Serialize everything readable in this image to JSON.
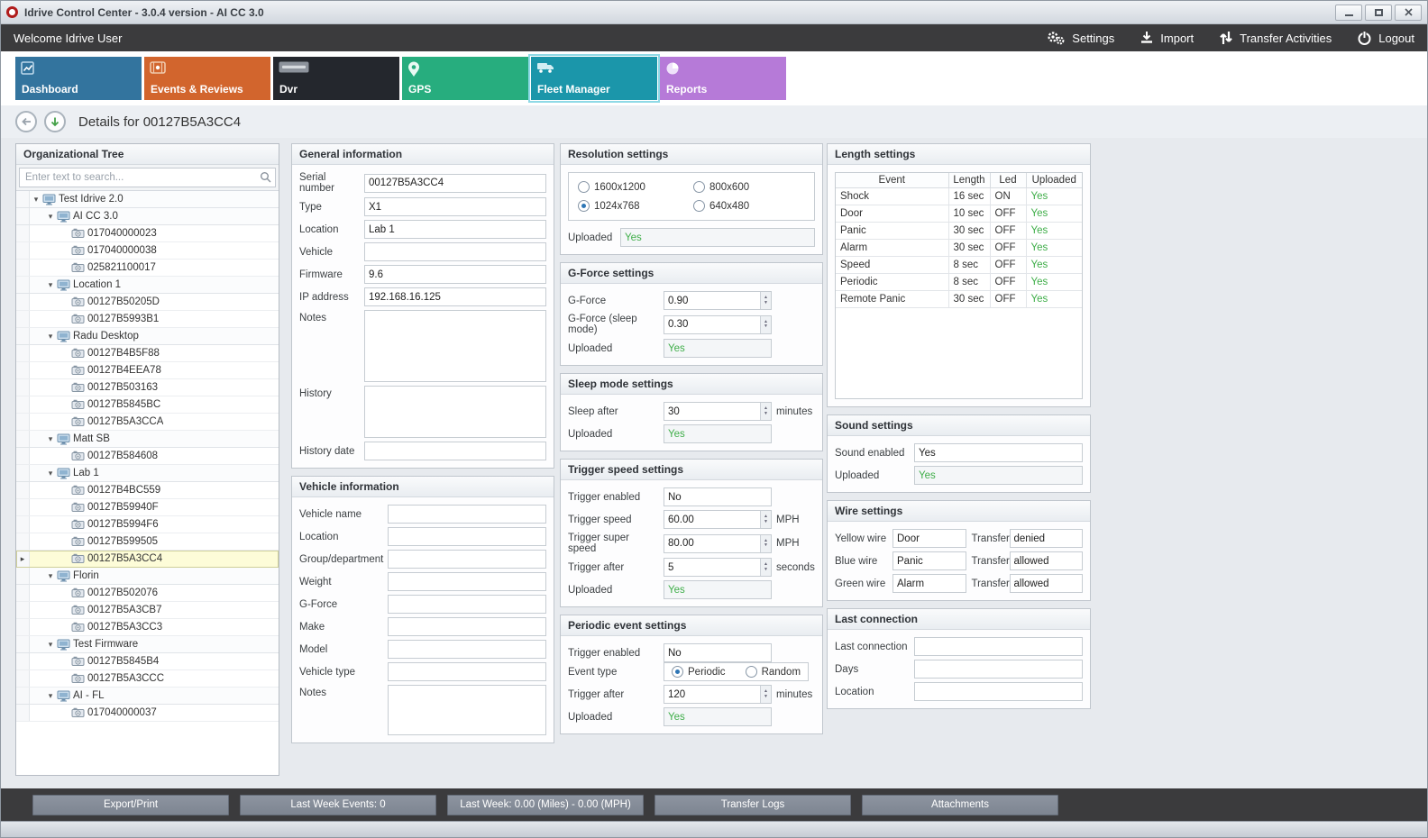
{
  "window": {
    "title": "Idrive Control Center - 3.0.4 version - AI CC 3.0"
  },
  "topbar": {
    "welcome": "Welcome Idrive User",
    "actions": [
      {
        "label": "Settings",
        "icon": "gears-icon"
      },
      {
        "label": "Import",
        "icon": "import-icon"
      },
      {
        "label": "Transfer Activities",
        "icon": "transfer-arrows-icon"
      },
      {
        "label": "Logout",
        "icon": "power-icon"
      }
    ]
  },
  "tabs": [
    {
      "label": "Dashboard",
      "icon": "chart-icon",
      "color": "#33749e",
      "selected": false
    },
    {
      "label": "Events & Reviews",
      "icon": "film-icon",
      "color": "#d2652d",
      "selected": false
    },
    {
      "label": "Dvr",
      "icon": "media-badge-icon",
      "color": "#24272d",
      "selected": false
    },
    {
      "label": "GPS",
      "icon": "map-pin-icon",
      "color": "#27ad7e",
      "selected": false
    },
    {
      "label": "Fleet Manager",
      "icon": "fleet-truck-icon",
      "color": "#1b96aa",
      "selected": true
    },
    {
      "label": "Reports",
      "icon": "pie-chart-icon",
      "color": "#b67ad8",
      "selected": false
    }
  ],
  "breadcrumb": {
    "title": "Details for 00127B5A3CC4"
  },
  "org_tree": {
    "title": "Organizational Tree",
    "search_placeholder": "Enter text to search...",
    "group_icon": "monitor-icon",
    "device_icon": "camera-icon",
    "nodes": [
      {
        "label": "Test Idrive 2.0",
        "level": 0,
        "type": "group"
      },
      {
        "label": "AI CC 3.0",
        "level": 1,
        "type": "group"
      },
      {
        "label": "017040000023",
        "level": 2,
        "type": "device"
      },
      {
        "label": "017040000038",
        "level": 2,
        "type": "device"
      },
      {
        "label": "025821100017",
        "level": 2,
        "type": "device"
      },
      {
        "label": "Location 1",
        "level": 1,
        "type": "group"
      },
      {
        "label": "00127B50205D",
        "level": 2,
        "type": "device"
      },
      {
        "label": "00127B5993B1",
        "level": 2,
        "type": "device"
      },
      {
        "label": "Radu Desktop",
        "level": 1,
        "type": "group"
      },
      {
        "label": "00127B4B5F88",
        "level": 2,
        "type": "device"
      },
      {
        "label": "00127B4EEA78",
        "level": 2,
        "type": "device"
      },
      {
        "label": "00127B503163",
        "level": 2,
        "type": "device"
      },
      {
        "label": "00127B5845BC",
        "level": 2,
        "type": "device"
      },
      {
        "label": "00127B5A3CCA",
        "level": 2,
        "type": "device"
      },
      {
        "label": "Matt SB",
        "level": 1,
        "type": "group"
      },
      {
        "label": "00127B584608",
        "level": 2,
        "type": "device"
      },
      {
        "label": "Lab 1",
        "level": 1,
        "type": "group"
      },
      {
        "label": "00127B4BC559",
        "level": 2,
        "type": "device"
      },
      {
        "label": "00127B59940F",
        "level": 2,
        "type": "device"
      },
      {
        "label": "00127B5994F6",
        "level": 2,
        "type": "device"
      },
      {
        "label": "00127B599505",
        "level": 2,
        "type": "device"
      },
      {
        "label": "00127B5A3CC4",
        "level": 2,
        "type": "device",
        "selected": true
      },
      {
        "label": "Florin",
        "level": 1,
        "type": "group"
      },
      {
        "label": "00127B502076",
        "level": 2,
        "type": "device"
      },
      {
        "label": "00127B5A3CB7",
        "level": 2,
        "type": "device"
      },
      {
        "label": "00127B5A3CC3",
        "level": 2,
        "type": "device"
      },
      {
        "label": "Test Firmware",
        "level": 1,
        "type": "group"
      },
      {
        "label": "00127B5845B4",
        "level": 2,
        "type": "device"
      },
      {
        "label": "00127B5A3CCC",
        "level": 2,
        "type": "device"
      },
      {
        "label": "AI - FL",
        "level": 1,
        "type": "group"
      },
      {
        "label": "017040000037",
        "level": 2,
        "type": "device"
      }
    ]
  },
  "general_information": {
    "title": "General information",
    "fields": [
      {
        "label": "Serial number",
        "value": "00127B5A3CC4"
      },
      {
        "label": "Type",
        "value": "X1"
      },
      {
        "label": "Location",
        "value": "Lab 1"
      },
      {
        "label": "Vehicle",
        "value": ""
      },
      {
        "label": "Firmware",
        "value": "9.6"
      },
      {
        "label": "IP address",
        "value": "192.168.16.125"
      },
      {
        "label": "Notes",
        "value": "",
        "type": "textarea"
      },
      {
        "label": "History",
        "value": "",
        "type": "textarea"
      },
      {
        "label": "History date",
        "value": ""
      }
    ]
  },
  "vehicle_information": {
    "title": "Vehicle information",
    "fields": [
      {
        "label": "Vehicle name",
        "value": ""
      },
      {
        "label": "Location",
        "value": ""
      },
      {
        "label": "Group/department",
        "value": ""
      },
      {
        "label": "Weight",
        "value": ""
      },
      {
        "label": "G-Force",
        "value": ""
      },
      {
        "label": "Make",
        "value": ""
      },
      {
        "label": "Model",
        "value": ""
      },
      {
        "label": "Vehicle type",
        "value": ""
      },
      {
        "label": "Notes",
        "value": "",
        "type": "textarea"
      }
    ]
  },
  "resolution_settings": {
    "title": "Resolution settings",
    "options": [
      {
        "label": "1600x1200",
        "selected": false
      },
      {
        "label": "800x600",
        "selected": false
      },
      {
        "label": "1024x768",
        "selected": true
      },
      {
        "label": "640x480",
        "selected": false
      }
    ],
    "uploaded": {
      "label": "Uploaded",
      "value": "Yes",
      "status": true
    }
  },
  "gforce_settings": {
    "title": "G-Force settings",
    "fields": [
      {
        "label": "G-Force",
        "value": "0.90",
        "spinner": true
      },
      {
        "label": "G-Force (sleep mode)",
        "value": "0.30",
        "spinner": true
      },
      {
        "label": "Uploaded",
        "value": "Yes",
        "status": true
      }
    ]
  },
  "sleep_mode_settings": {
    "title": "Sleep mode settings",
    "fields": [
      {
        "label": "Sleep after",
        "value": "30",
        "unit": "minutes",
        "spinner": true
      },
      {
        "label": "Uploaded",
        "value": "Yes",
        "status": true
      }
    ]
  },
  "trigger_speed_settings": {
    "title": "Trigger speed settings",
    "fields": [
      {
        "label": "Trigger enabled",
        "value": "No"
      },
      {
        "label": "Trigger speed",
        "value": "60.00",
        "unit": "MPH",
        "spinner": true
      },
      {
        "label": "Trigger super speed",
        "value": "80.00",
        "unit": "MPH",
        "spinner": true
      },
      {
        "label": "Trigger after",
        "value": "5",
        "unit": "seconds",
        "spinner": true
      },
      {
        "label": "Uploaded",
        "value": "Yes",
        "status": true
      }
    ]
  },
  "periodic_event_settings": {
    "title": "Periodic event settings",
    "fields_top": [
      {
        "label": "Trigger enabled",
        "value": "No"
      }
    ],
    "event_type": {
      "label": "Event type",
      "options": [
        {
          "label": "Periodic",
          "selected": true
        },
        {
          "label": "Random",
          "selected": false
        }
      ]
    },
    "fields_bottom": [
      {
        "label": "Trigger after",
        "value": "120",
        "unit": "minutes",
        "spinner": true
      },
      {
        "label": "Uploaded",
        "value": "Yes",
        "status": true
      }
    ]
  },
  "length_settings": {
    "title": "Length settings",
    "table": {
      "headers": [
        "Event",
        "Length",
        "Led",
        "Uploaded"
      ],
      "rows": [
        [
          "Shock",
          "16 sec",
          "ON",
          "Yes"
        ],
        [
          "Door",
          "10 sec",
          "OFF",
          "Yes"
        ],
        [
          "Panic",
          "30 sec",
          "OFF",
          "Yes"
        ],
        [
          "Alarm",
          "30 sec",
          "OFF",
          "Yes"
        ],
        [
          "Speed",
          "8 sec",
          "OFF",
          "Yes"
        ],
        [
          "Periodic",
          "8 sec",
          "OFF",
          "Yes"
        ],
        [
          "Remote Panic",
          "30 sec",
          "OFF",
          "Yes"
        ]
      ]
    }
  },
  "sound_settings": {
    "title": "Sound settings",
    "fields": [
      {
        "label": "Sound enabled",
        "value": "Yes"
      },
      {
        "label": "Uploaded",
        "value": "Yes",
        "status": true
      }
    ]
  },
  "wire_settings": {
    "title": "Wire settings",
    "rows": [
      {
        "wire_label": "Yellow wire",
        "wire_value": "Door",
        "transfer_label": "Transfer",
        "transfer_value": "denied"
      },
      {
        "wire_label": "Blue wire",
        "wire_value": "Panic",
        "transfer_label": "Transfer",
        "transfer_value": "allowed"
      },
      {
        "wire_label": "Green wire",
        "wire_value": "Alarm",
        "transfer_label": "Transfer",
        "transfer_value": "allowed"
      }
    ]
  },
  "last_connection": {
    "title": "Last connection",
    "fields": [
      {
        "label": "Last connection",
        "value": ""
      },
      {
        "label": "Days",
        "value": ""
      },
      {
        "label": "Location",
        "value": ""
      }
    ]
  },
  "bottom_bar": {
    "buttons": [
      "Export/Print",
      "Last Week Events: 0",
      "Last Week: 0.00 (Miles) - 0.00 (MPH)",
      "Transfer Logs",
      "Attachments"
    ]
  },
  "colors": {
    "status_green": "#3fae49",
    "selected_tree_row": "#fdfcd8",
    "dark_bar": "#3b3b3d"
  }
}
